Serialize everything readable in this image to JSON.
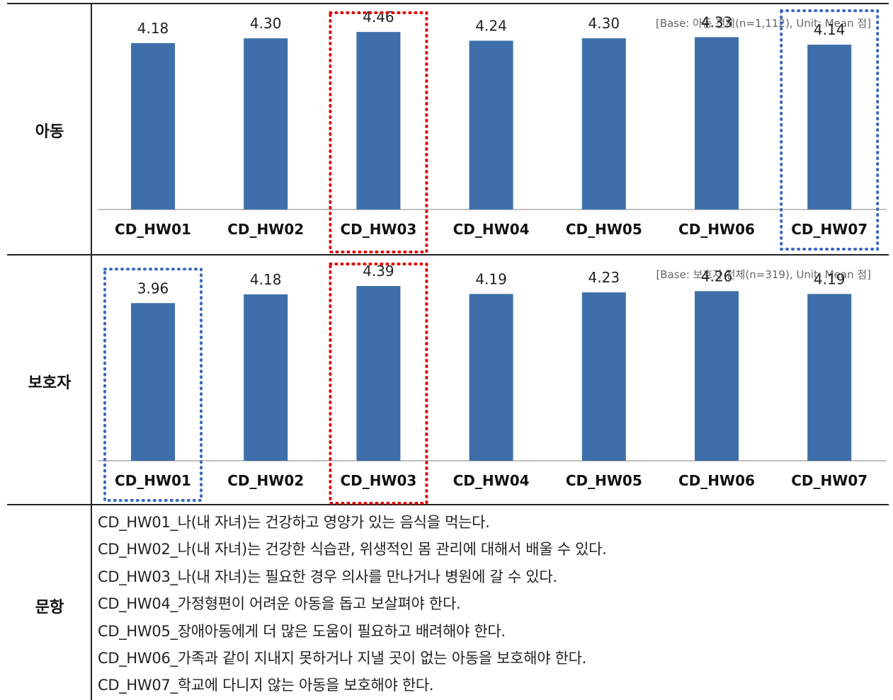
{
  "rows": {
    "child": "아동",
    "guardian": "보호자",
    "items": "문항"
  },
  "chart_data": [
    {
      "type": "bar",
      "name": "아동",
      "base_note": "[Base: 아동 전체(n=1,112), Unit: Mean 점]",
      "categories": [
        "CD_HW01",
        "CD_HW02",
        "CD_HW03",
        "CD_HW04",
        "CD_HW05",
        "CD_HW06",
        "CD_HW07"
      ],
      "values": [
        4.18,
        4.3,
        4.46,
        4.24,
        4.3,
        4.33,
        4.14
      ],
      "labels": [
        "4.18",
        "4.30",
        "4.46",
        "4.24",
        "4.30",
        "4.33",
        "4.14"
      ],
      "ylim": [
        0,
        4.8
      ],
      "highlight_max": "CD_HW03",
      "highlight_min": "CD_HW07",
      "bar_color": "#3f6faa",
      "max_box_color": "#e00000",
      "min_box_color": "#3a67c2"
    },
    {
      "type": "bar",
      "name": "보호자",
      "base_note": "[Base: 보호자 전체(n=319), Unit: Mean 점]",
      "categories": [
        "CD_HW01",
        "CD_HW02",
        "CD_HW03",
        "CD_HW04",
        "CD_HW05",
        "CD_HW06",
        "CD_HW07"
      ],
      "values": [
        3.96,
        4.18,
        4.39,
        4.19,
        4.23,
        4.26,
        4.19
      ],
      "labels": [
        "3.96",
        "4.18",
        "4.39",
        "4.19",
        "4.23",
        "4.26",
        "4.19"
      ],
      "ylim": [
        0,
        4.8
      ],
      "highlight_max": "CD_HW03",
      "highlight_min": "CD_HW01",
      "bar_color": "#3f6faa",
      "max_box_color": "#e00000",
      "min_box_color": "#3a67c2"
    }
  ],
  "item_list": [
    "CD_HW01_나(내 자녀)는 건강하고 영양가 있는 음식을 먹는다.",
    "CD_HW02_나(내 자녀)는 건강한 식습관, 위생적인 몸 관리에 대해서 배울 수 있다.",
    "CD_HW03_나(내 자녀)는 필요한 경우 의사를 만나거나 병원에 갈 수 있다.",
    "CD_HW04_가정형편이 어려운 아동을 돕고 보살펴야 한다.",
    "CD_HW05_장애아동에게 더 많은 도움이 필요하고 배려해야 한다.",
    "CD_HW06_가족과 같이 지내지 못하거나 지낼 곳이 없는 아동을 보호해야 한다.",
    "CD_HW07_학교에 다니지 않는 아동을 보호해야 한다."
  ]
}
